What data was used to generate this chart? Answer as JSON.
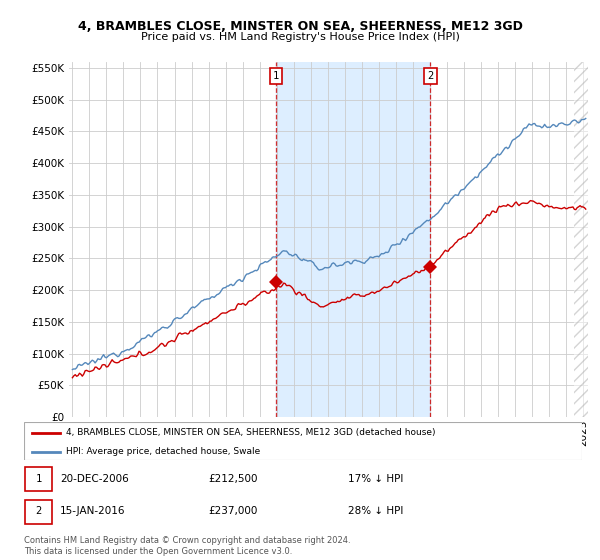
{
  "title": "4, BRAMBLES CLOSE, MINSTER ON SEA, SHEERNESS, ME12 3GD",
  "subtitle": "Price paid vs. HM Land Registry's House Price Index (HPI)",
  "legend_line1": "4, BRAMBLES CLOSE, MINSTER ON SEA, SHEERNESS, ME12 3GD (detached house)",
  "legend_line2": "HPI: Average price, detached house, Swale",
  "point1_date": "20-DEC-2006",
  "point1_price": "£212,500",
  "point1_hpi": "17% ↓ HPI",
  "point2_date": "15-JAN-2016",
  "point2_price": "£237,000",
  "point2_hpi": "28% ↓ HPI",
  "footnote": "Contains HM Land Registry data © Crown copyright and database right 2024.\nThis data is licensed under the Open Government Licence v3.0.",
  "red_color": "#cc0000",
  "blue_color": "#5588bb",
  "shade_color": "#ddeeff",
  "ylim_min": 0,
  "ylim_max": 560000,
  "ytick_step": 50000,
  "xlim_min": 1994.8,
  "xlim_max": 2025.3,
  "p1_year": 2006.958,
  "p1_val": 212500,
  "p2_year": 2016.042,
  "p2_val": 237000,
  "background_color": "#ffffff",
  "grid_color": "#cccccc",
  "chart_bg": "#ffffff"
}
